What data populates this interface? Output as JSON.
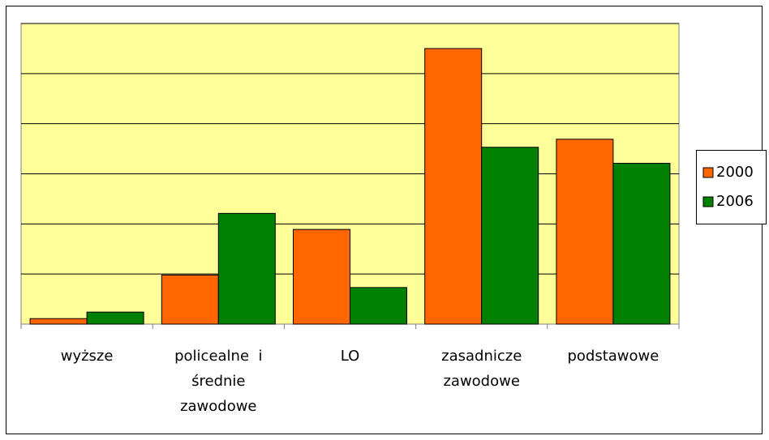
{
  "chart_data": {
    "type": "bar",
    "categories": [
      "wyższe",
      "policealne  i\nśrednie\nzawodowe",
      "LO",
      "zasadnicze\nzawodowe",
      "podstawowe"
    ],
    "series": [
      {
        "name": "2000",
        "color": "#ff6600",
        "values": [
          0.11,
          0.98,
          1.89,
          5.5,
          3.69
        ]
      },
      {
        "name": "2006",
        "color": "#008000",
        "values": [
          0.24,
          2.21,
          0.73,
          3.53,
          3.21
        ]
      }
    ],
    "ylim": [
      0,
      6
    ],
    "yticks": [
      0,
      1,
      2,
      3,
      4,
      5,
      6
    ],
    "grid": true,
    "legend": "right"
  }
}
